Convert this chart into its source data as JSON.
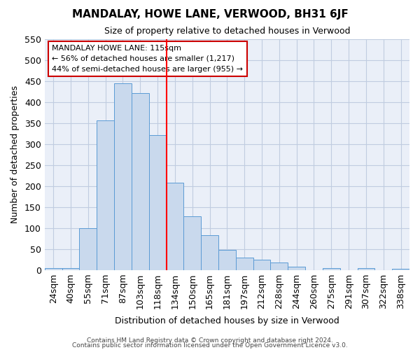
{
  "title": "MANDALAY, HOWE LANE, VERWOOD, BH31 6JF",
  "subtitle": "Size of property relative to detached houses in Verwood",
  "xlabel": "Distribution of detached houses by size in Verwood",
  "ylabel": "Number of detached properties",
  "categories": [
    "24sqm",
    "40sqm",
    "55sqm",
    "71sqm",
    "87sqm",
    "103sqm",
    "118sqm",
    "134sqm",
    "150sqm",
    "165sqm",
    "181sqm",
    "197sqm",
    "212sqm",
    "228sqm",
    "244sqm",
    "260sqm",
    "275sqm",
    "291sqm",
    "307sqm",
    "322sqm",
    "338sqm"
  ],
  "values": [
    5,
    5,
    100,
    357,
    445,
    422,
    322,
    208,
    128,
    83,
    48,
    29,
    25,
    18,
    7,
    0,
    5,
    0,
    5,
    0,
    3
  ],
  "bar_color": "#c9d9ed",
  "bar_edge_color": "#5b9bd5",
  "grid_color": "#c0cce0",
  "background_color": "#eaeff8",
  "vline_x": 6.5,
  "vline_color": "#ff0000",
  "annotation_text": "MANDALAY HOWE LANE: 115sqm\n← 56% of detached houses are smaller (1,217)\n44% of semi-detached houses are larger (955) →",
  "annotation_box_facecolor": "#ffffff",
  "annotation_box_edgecolor": "#cc0000",
  "ylim": [
    0,
    550
  ],
  "yticks": [
    0,
    50,
    100,
    150,
    200,
    250,
    300,
    350,
    400,
    450,
    500,
    550
  ],
  "footer1": "Contains HM Land Registry data © Crown copyright and database right 2024.",
  "footer2": "Contains public sector information licensed under the Open Government Licence v3.0."
}
